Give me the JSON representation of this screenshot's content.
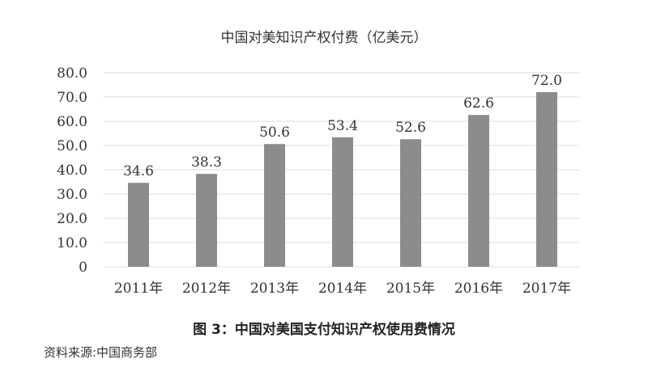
{
  "chart_data": {
    "type": "bar",
    "title": "中国对美知识产权付费（亿美元）",
    "categories": [
      "2011年",
      "2012年",
      "2013年",
      "2014年",
      "2015年",
      "2016年",
      "2017年"
    ],
    "values": [
      34.6,
      38.3,
      50.6,
      53.4,
      52.6,
      62.6,
      72.0
    ],
    "value_labels": [
      "34.6",
      "38.3",
      "50.6",
      "53.4",
      "52.6",
      "62.6",
      "72.0"
    ],
    "yticks": [
      "0",
      "10.0",
      "20.0",
      "30.0",
      "40.0",
      "50.0",
      "60.0",
      "70.0",
      "80.0"
    ],
    "ylim": [
      0,
      80
    ],
    "xlabel": "",
    "ylabel": "",
    "grid": true,
    "legend": "none",
    "bar_color": "#8c8c8e",
    "grid_color": "#e4e4e4"
  },
  "caption": "图 3：中国对美国支付知识产权使用费情况",
  "source": "资料来源:中国商务部"
}
